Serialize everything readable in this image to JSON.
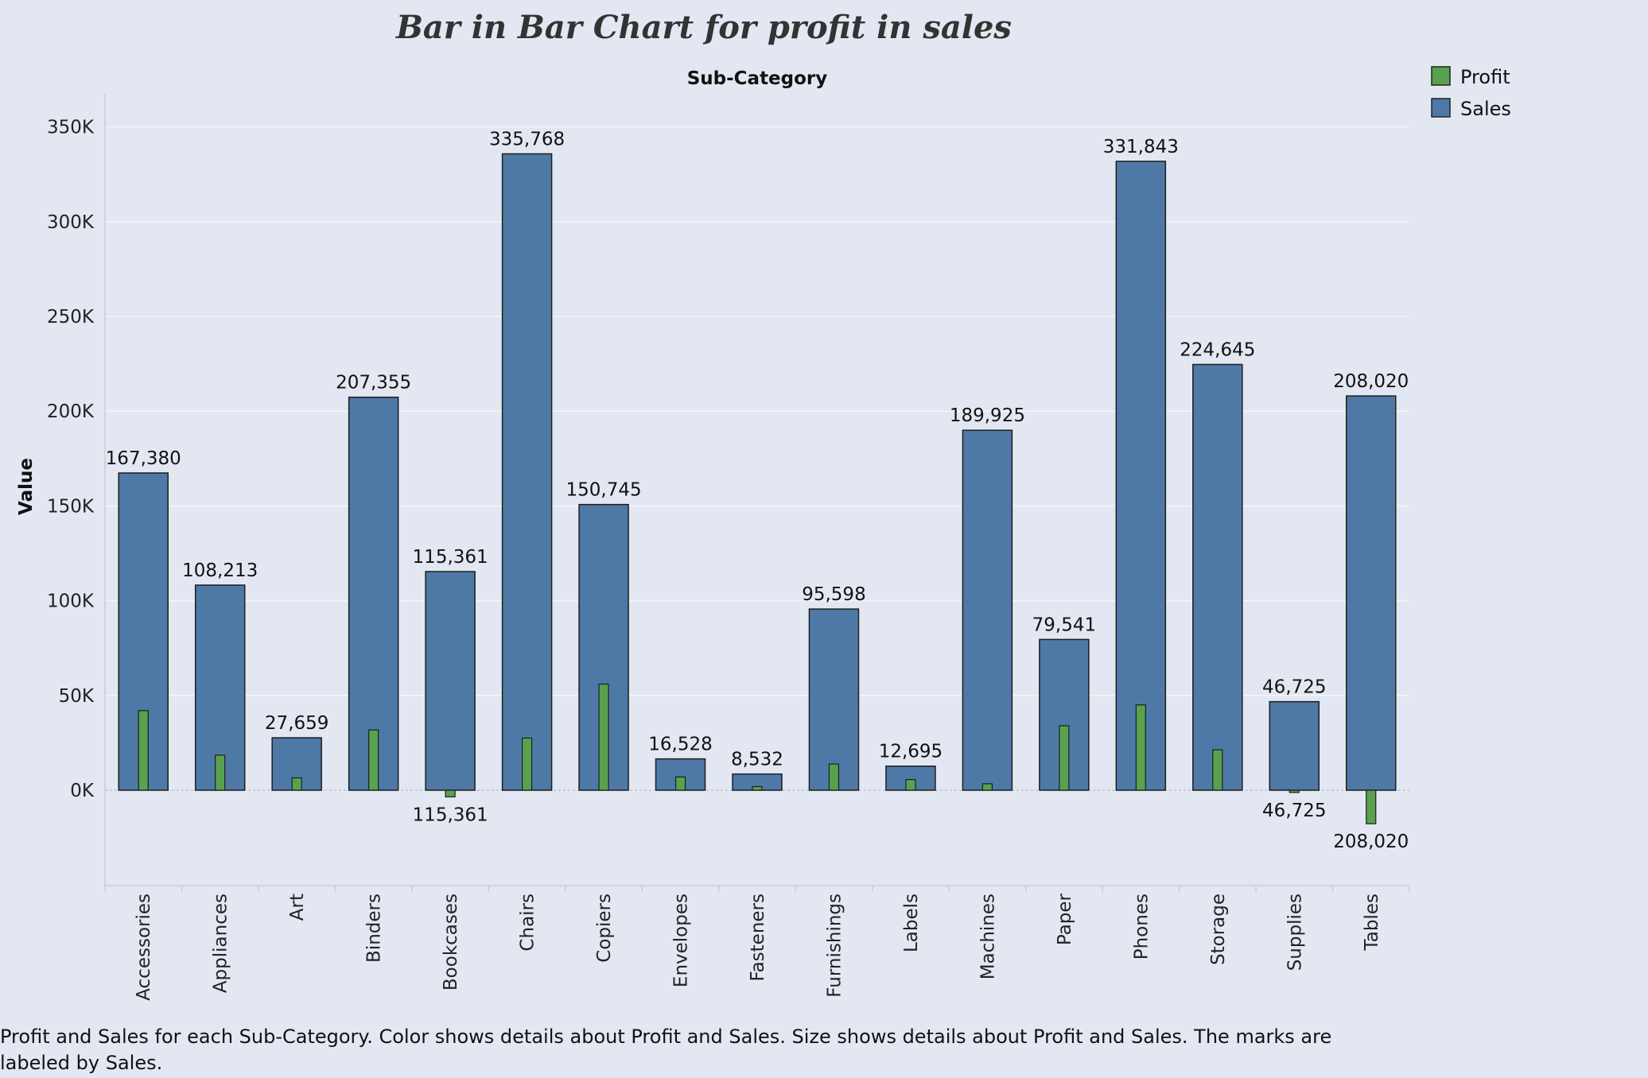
{
  "chart_data": {
    "type": "bar",
    "title": "Bar in Bar Chart for profit in sales",
    "column_header": "Sub-Category",
    "ylabel": "Value",
    "ylim": [
      -50000,
      360000
    ],
    "yticks": [
      0,
      50000,
      100000,
      150000,
      200000,
      250000,
      300000,
      350000
    ],
    "ytick_labels": [
      "0K",
      "50K",
      "100K",
      "150K",
      "200K",
      "250K",
      "300K",
      "350K"
    ],
    "grid": true,
    "legend_position": "top-right",
    "categories": [
      "Accessories",
      "Appliances",
      "Art",
      "Binders",
      "Bookcases",
      "Chairs",
      "Copiers",
      "Envelopes",
      "Fasteners",
      "Furnishings",
      "Labels",
      "Machines",
      "Paper",
      "Phones",
      "Storage",
      "Supplies",
      "Tables"
    ],
    "series": [
      {
        "name": "Profit",
        "color": "#59a14f",
        "values": [
          42000,
          18500,
          6500,
          31800,
          -3500,
          27500,
          56000,
          7000,
          1900,
          13800,
          5600,
          3400,
          34000,
          45000,
          21300,
          -1200,
          -17700
        ]
      },
      {
        "name": "Sales",
        "color": "#4e79a7",
        "values": [
          167380,
          108213,
          27659,
          207355,
          115361,
          335768,
          150745,
          16528,
          8532,
          95598,
          12695,
          189925,
          79541,
          331843,
          224645,
          46725,
          208020
        ]
      }
    ],
    "data_labels": [
      "167,380",
      "108,213",
      "27,659",
      "207,355",
      "115,361",
      "335,768",
      "150,745",
      "16,528",
      "8,532",
      "95,598",
      "12,695",
      "189,925",
      "79,541",
      "331,843",
      "224,645",
      "46,725",
      "208,020"
    ],
    "negative_profit_labels": [
      "115,361",
      "46,725",
      "208,020"
    ],
    "caption": "Profit and Sales for each Sub-Category.  Color shows details about Profit and Sales.  Size shows details about Profit and Sales.  The marks are labeled by Sales."
  }
}
